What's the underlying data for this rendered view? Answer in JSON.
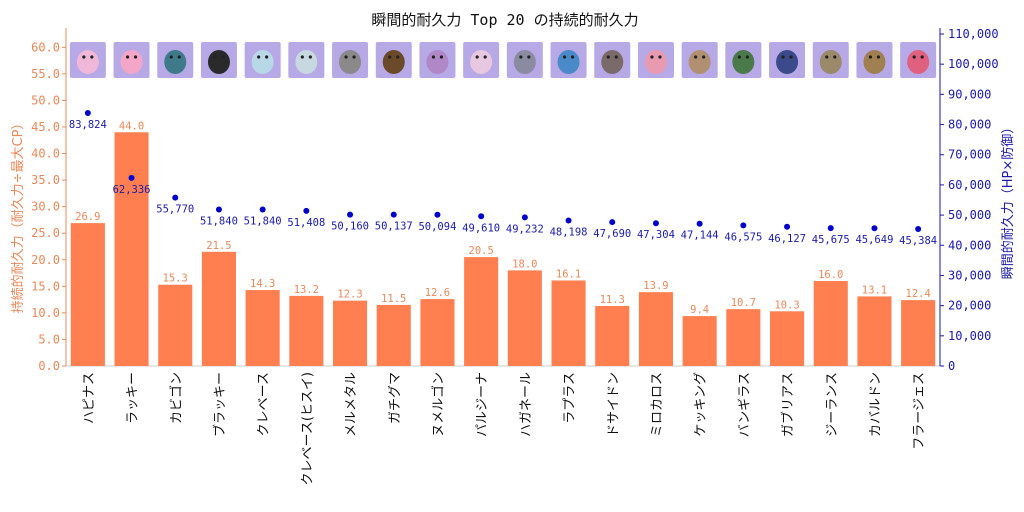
{
  "chart_data": {
    "type": "bar",
    "title": "瞬間的耐久力 Top 20 の持続的耐久力",
    "ylabel": "持続的耐久力（耐久力÷最大CP）",
    "y2label": "瞬間的耐久力（HP×防御）",
    "ylim": [
      0,
      62.5
    ],
    "y2lim": [
      0,
      110000
    ],
    "yticks": [
      "0.0",
      "5.0",
      "10.0",
      "15.0",
      "20.0",
      "25.0",
      "30.0",
      "35.0",
      "40.0",
      "45.0",
      "50.0",
      "55.0",
      "60.0"
    ],
    "y2ticks": [
      "0",
      "10,000",
      "20,000",
      "30,000",
      "40,000",
      "50,000",
      "60,000",
      "70,000",
      "80,000",
      "90,000",
      "100,000",
      "110,000"
    ],
    "grid": false,
    "legend": "none",
    "categories": [
      "ハピナス",
      "ラッキー",
      "カビゴン",
      "ブラッキー",
      "クレベース",
      "クレベース(ヒスイ)",
      "メルメタル",
      "ガチグマ",
      "ヌメルゴン",
      "パルジーナ",
      "ハガネール",
      "ラプラス",
      "ドサイドン",
      "ミロカロス",
      "ケッキング",
      "バンギラス",
      "ガブリアス",
      "ジーランス",
      "カバルドン",
      "フラージェス"
    ],
    "series": [
      {
        "axis": "left",
        "kind": "bar",
        "color": "#FF7F50",
        "values": [
          26.9,
          44.0,
          15.3,
          21.5,
          14.3,
          13.2,
          12.3,
          11.5,
          12.6,
          20.5,
          18.0,
          16.1,
          11.3,
          13.9,
          9.4,
          10.7,
          10.3,
          16.0,
          13.1,
          12.4
        ],
        "labels": [
          "26.9",
          "44.0",
          "15.3",
          "21.5",
          "14.3",
          "13.2",
          "12.3",
          "11.5",
          "12.6",
          "20.5",
          "18.0",
          "16.1",
          "11.3",
          "13.9",
          "9.4",
          "10.7",
          "10.3",
          "16.0",
          "13.1",
          "12.4"
        ]
      },
      {
        "axis": "right",
        "kind": "scatter",
        "color": "#0000CD",
        "values": [
          83824,
          62336,
          55770,
          51840,
          51840,
          51408,
          50160,
          50137,
          50094,
          49610,
          49232,
          48198,
          47690,
          47304,
          47144,
          46575,
          46127,
          45675,
          45649,
          45384
        ],
        "labels": [
          "83,824",
          "62,336",
          "55,770",
          "51,840",
          "51,840",
          "51,408",
          "50,160",
          "50,137",
          "50,094",
          "49,610",
          "49,232",
          "48,198",
          "47,690",
          "47,304",
          "47,144",
          "46,575",
          "46,127",
          "45,675",
          "45,649",
          "45,384"
        ]
      }
    ]
  },
  "colors": {
    "left_axis": "#E8895B",
    "right_axis": "#1A1AAA",
    "bar": "#FF7F50",
    "point": "#0000CD",
    "thumb_bg": "#B7A8E6"
  },
  "icons": [
    "blissey-sprite",
    "chansey-sprite",
    "snorlax-sprite",
    "umbreon-sprite",
    "avalugg-sprite",
    "hisuian-avalugg-sprite",
    "melmetal-sprite",
    "ursaluna-sprite",
    "goodra-sprite",
    "palkia-origin-sprite",
    "steelix-sprite",
    "lapras-sprite",
    "rhyperior-sprite",
    "milotic-sprite",
    "slaking-sprite",
    "tyranitar-sprite",
    "garchomp-sprite",
    "relicanth-sprite",
    "hippowdon-sprite",
    "florges-sprite"
  ]
}
